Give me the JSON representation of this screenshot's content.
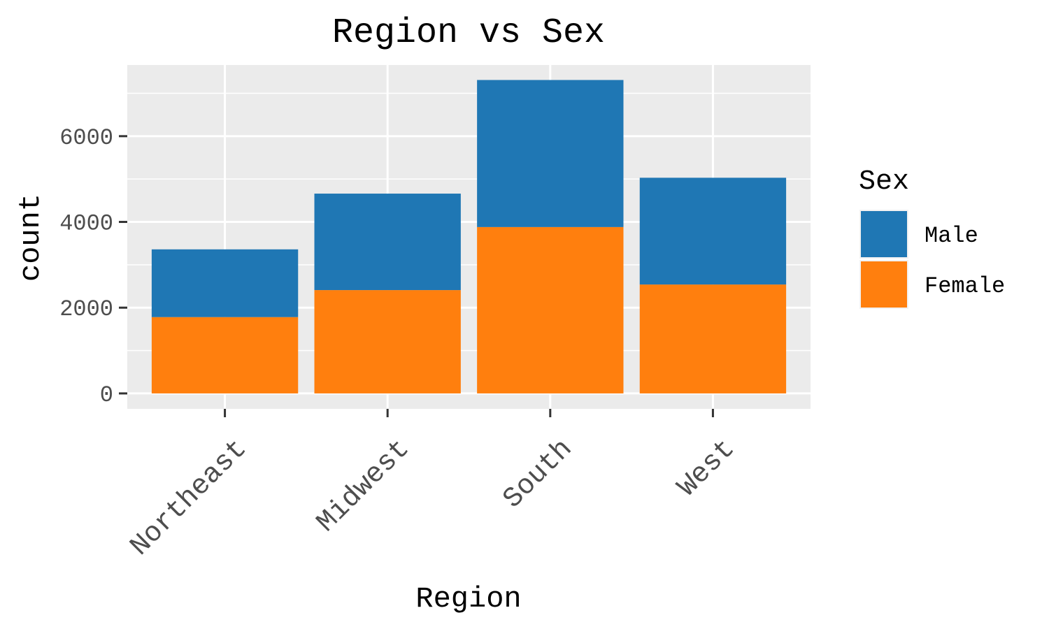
{
  "chart_data": {
    "type": "bar",
    "stacked": true,
    "title": "Region vs Sex",
    "xlabel": "Region",
    "ylabel": "count",
    "categories": [
      "Northeast",
      "Midwest",
      "South",
      "West"
    ],
    "series": [
      {
        "name": "Male",
        "values": [
          1580,
          2250,
          3430,
          2490
        ],
        "color": "#1f77b4"
      },
      {
        "name": "Female",
        "values": [
          1780,
          2410,
          3880,
          2540
        ],
        "color": "#ff7f0e"
      }
    ],
    "ylim": [
      -360,
      7660
    ],
    "yticks": [
      0,
      2000,
      4000,
      6000
    ],
    "ytick_labels": [
      "0",
      "2000",
      "4000",
      "6000"
    ],
    "grid": true,
    "panel_background": "#ebebeb",
    "legend": {
      "title": "Sex",
      "position": "right",
      "entries": [
        "Male",
        "Female"
      ]
    }
  }
}
